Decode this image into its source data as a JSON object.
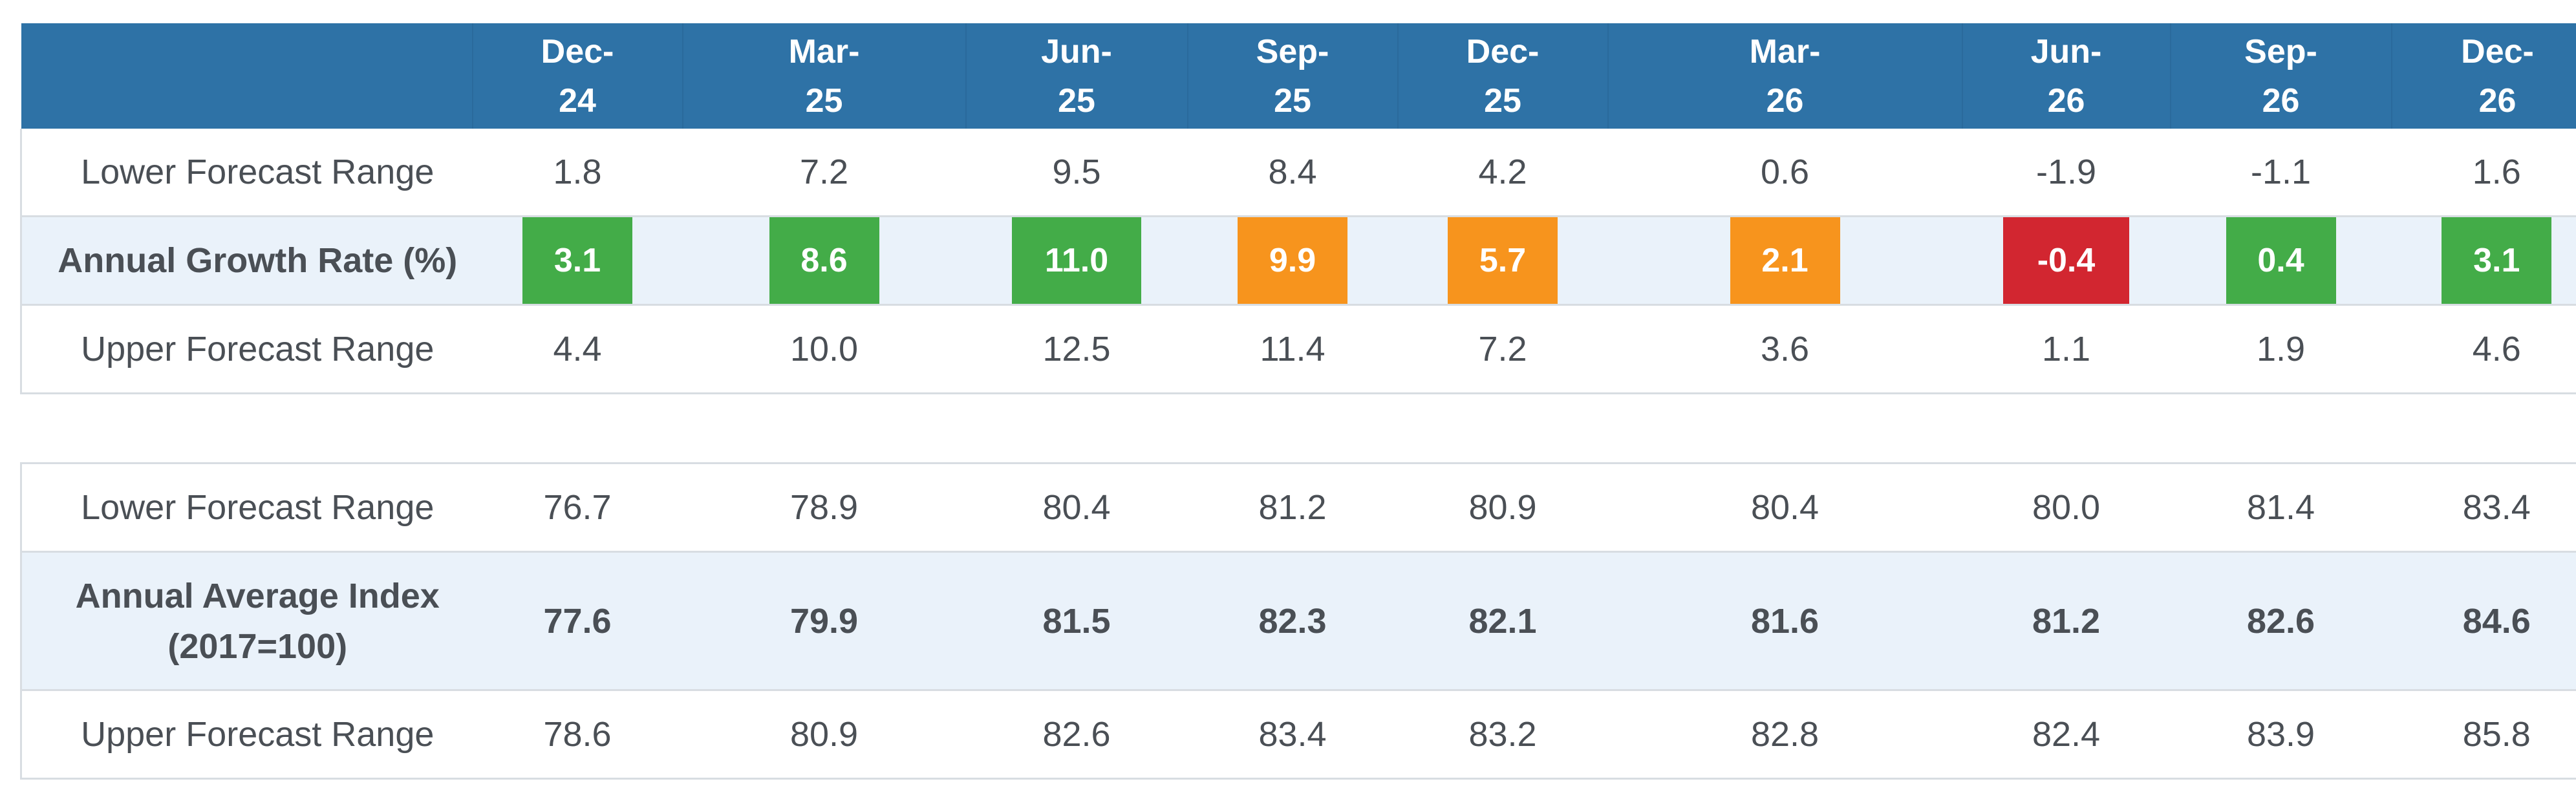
{
  "columns": [
    "Dec-\n24",
    "Mar-\n25",
    "Jun-\n25",
    "Sep-\n25",
    "Dec-\n25",
    "Mar-\n26",
    "Jun-\n26",
    "Sep-\n26",
    "Dec-\n26"
  ],
  "column_parts": [
    [
      "Dec-",
      "24"
    ],
    [
      "Mar-",
      "25"
    ],
    [
      "Jun-",
      "25"
    ],
    [
      "Sep-",
      "25"
    ],
    [
      "Dec-",
      "25"
    ],
    [
      "Mar-",
      "26"
    ],
    [
      "Jun-",
      "26"
    ],
    [
      "Sep-",
      "26"
    ],
    [
      "Dec-",
      "26"
    ]
  ],
  "growth": {
    "lower": {
      "label": "Lower Forecast Range",
      "values": [
        "1.8",
        "7.2",
        "9.5",
        "8.4",
        "4.2",
        "0.6",
        "-1.9",
        "-1.1",
        "1.6"
      ]
    },
    "rate": {
      "label": "Annual Growth Rate (%)",
      "values": [
        "3.1",
        "8.6",
        "11.0",
        "9.9",
        "5.7",
        "2.1",
        "-0.4",
        "0.4",
        "3.1"
      ],
      "badge_colors": [
        "#43ac48",
        "#43ac48",
        "#43ac48",
        "#f7941d",
        "#f7941d",
        "#f7941d",
        "#d22630",
        "#43ac48",
        "#43ac48"
      ]
    },
    "upper": {
      "label": "Upper Forecast Range",
      "values": [
        "4.4",
        "10.0",
        "12.5",
        "11.4",
        "7.2",
        "3.6",
        "1.1",
        "1.9",
        "4.6"
      ]
    }
  },
  "index": {
    "lower": {
      "label": "Lower Forecast Range",
      "values": [
        "76.7",
        "78.9",
        "80.4",
        "81.2",
        "80.9",
        "80.4",
        "80.0",
        "81.4",
        "83.4"
      ]
    },
    "average": {
      "label_line1": "Annual Average Index",
      "label_line2": "(2017=100)",
      "values": [
        "77.6",
        "79.9",
        "81.5",
        "82.3",
        "82.1",
        "81.6",
        "81.2",
        "82.6",
        "84.6"
      ]
    },
    "upper": {
      "label": "Upper Forecast Range",
      "values": [
        "78.6",
        "80.9",
        "82.6",
        "83.4",
        "83.2",
        "82.8",
        "82.4",
        "83.9",
        "85.8"
      ]
    }
  },
  "colors": {
    "header_bg": "#2e72a6",
    "highlight_row_bg": "#eaf2fa",
    "green": "#43ac48",
    "orange": "#f7941d",
    "red": "#d22630"
  }
}
